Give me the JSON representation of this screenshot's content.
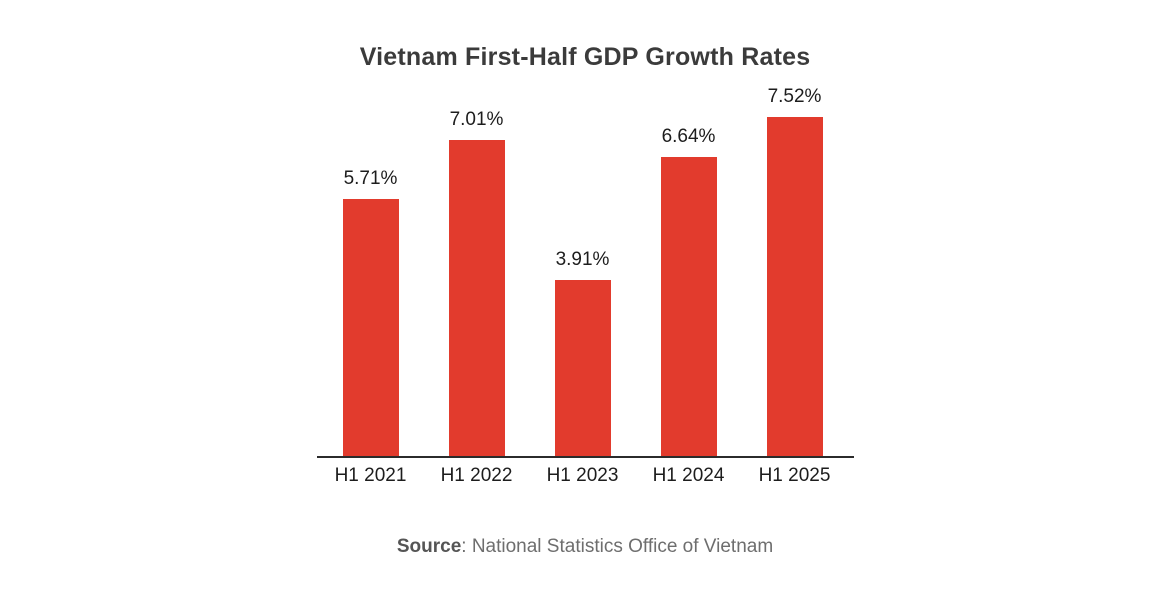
{
  "chart_data": {
    "type": "bar",
    "title": "Vietnam First-Half GDP Growth Rates",
    "categories": [
      "H1 2021",
      "H1 2022",
      "H1 2023",
      "H1 2024",
      "H1 2025"
    ],
    "values": [
      5.71,
      7.01,
      3.91,
      6.64,
      7.52
    ],
    "value_labels": [
      "5.71%",
      "7.01%",
      "3.91%",
      "6.64%",
      "7.52%"
    ],
    "xlabel": "",
    "ylabel": "",
    "ylim": [
      0,
      8
    ],
    "grid": false,
    "legend_position": "none",
    "bar_color": "#E23B2D",
    "axis_line_color": "#2B2B2B",
    "title_color": "#3B3B3B",
    "label_color": "#1D1D1D"
  },
  "source": {
    "label": "Source",
    "rest": ": National Statistics Office of Vietnam"
  }
}
